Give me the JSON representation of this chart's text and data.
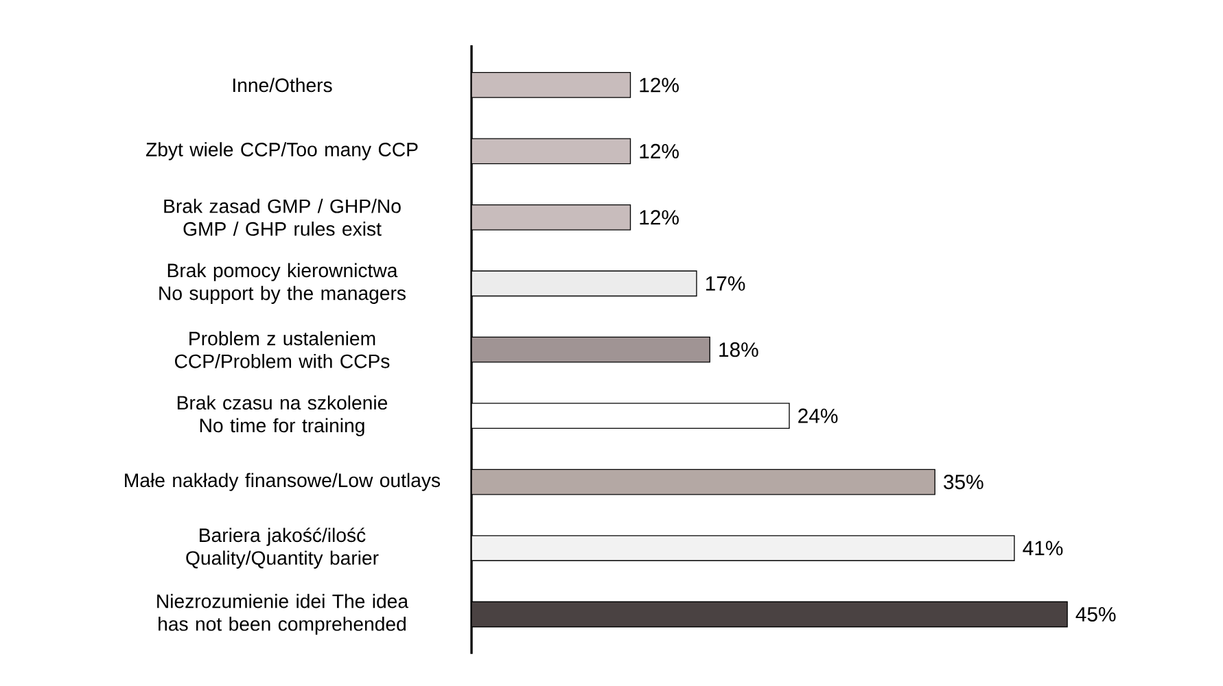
{
  "chart_data": {
    "type": "bar",
    "orientation": "horizontal",
    "categories": [
      "Inne/Others",
      "Zbyt wiele CCP/Too many CCP",
      "Brak zasad GMP / GHP/No GMP / GHP rules exist",
      "Brak pomocy kierownictwa No support by the managers",
      "Problem z ustaleniem CCP/Problem with CCPs",
      "Brak czasu na szkolenie No time for training",
      "Małe nakłady finansowe/Low outlays",
      "Bariera jakość/ilość Quality/Quantity barier",
      "Niezrozumienie idei The idea has not been comprehended"
    ],
    "values": [
      12,
      12,
      12,
      17,
      18,
      24,
      35,
      41,
      45
    ],
    "value_labels": [
      "12%",
      "12%",
      "12%",
      "17%",
      "18%",
      "24%",
      "35%",
      "41%",
      "45%"
    ],
    "colors": [
      "#c8bcbc",
      "#c8bcbc",
      "#c8bcbc",
      "#ececec",
      "#a09494",
      "#ffffff",
      "#b4a8a4",
      "#f2f2f2",
      "#4a4242"
    ]
  }
}
